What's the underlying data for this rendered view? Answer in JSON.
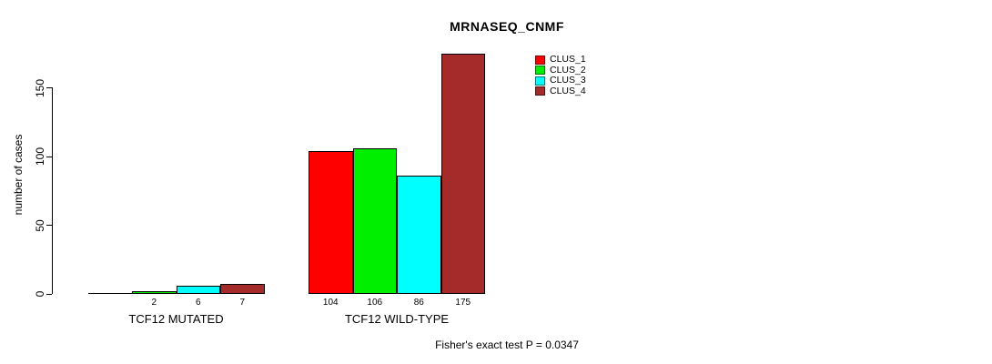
{
  "chart": {
    "title": "MRNASEQ_CNMF",
    "ylabel": "number of cases",
    "footer": "Fisher's exact test P = 0.0347"
  },
  "chart_data": {
    "type": "bar",
    "title": "MRNASEQ_CNMF",
    "xlabel": "",
    "ylabel": "number of cases",
    "yticks": [
      0,
      50,
      100,
      150
    ],
    "ylim": [
      0,
      180
    ],
    "grid": false,
    "legend_position": "top-right",
    "categories": [
      "TCF12 MUTATED",
      "TCF12 WILD-TYPE"
    ],
    "series": [
      {
        "name": "CLUS_1",
        "color": "#FF0000",
        "values": [
          0,
          104
        ]
      },
      {
        "name": "CLUS_2",
        "color": "#00EE00",
        "values": [
          2,
          106
        ]
      },
      {
        "name": "CLUS_3",
        "color": "#00FFFF",
        "values": [
          6,
          86
        ]
      },
      {
        "name": "CLUS_4",
        "color": "#A52A2A",
        "values": [
          7,
          175
        ]
      }
    ],
    "bar_value_labels": [
      [
        "",
        "104"
      ],
      [
        "2",
        "106"
      ],
      [
        "6",
        "86"
      ],
      [
        "7",
        "175"
      ]
    ],
    "annotation": "Fisher's exact test P = 0.0347"
  },
  "legend": {
    "items": [
      {
        "label": "CLUS_1",
        "color": "#FF0000"
      },
      {
        "label": "CLUS_2",
        "color": "#00EE00"
      },
      {
        "label": "CLUS_3",
        "color": "#00FFFF"
      },
      {
        "label": "CLUS_4",
        "color": "#A52A2A"
      }
    ]
  }
}
